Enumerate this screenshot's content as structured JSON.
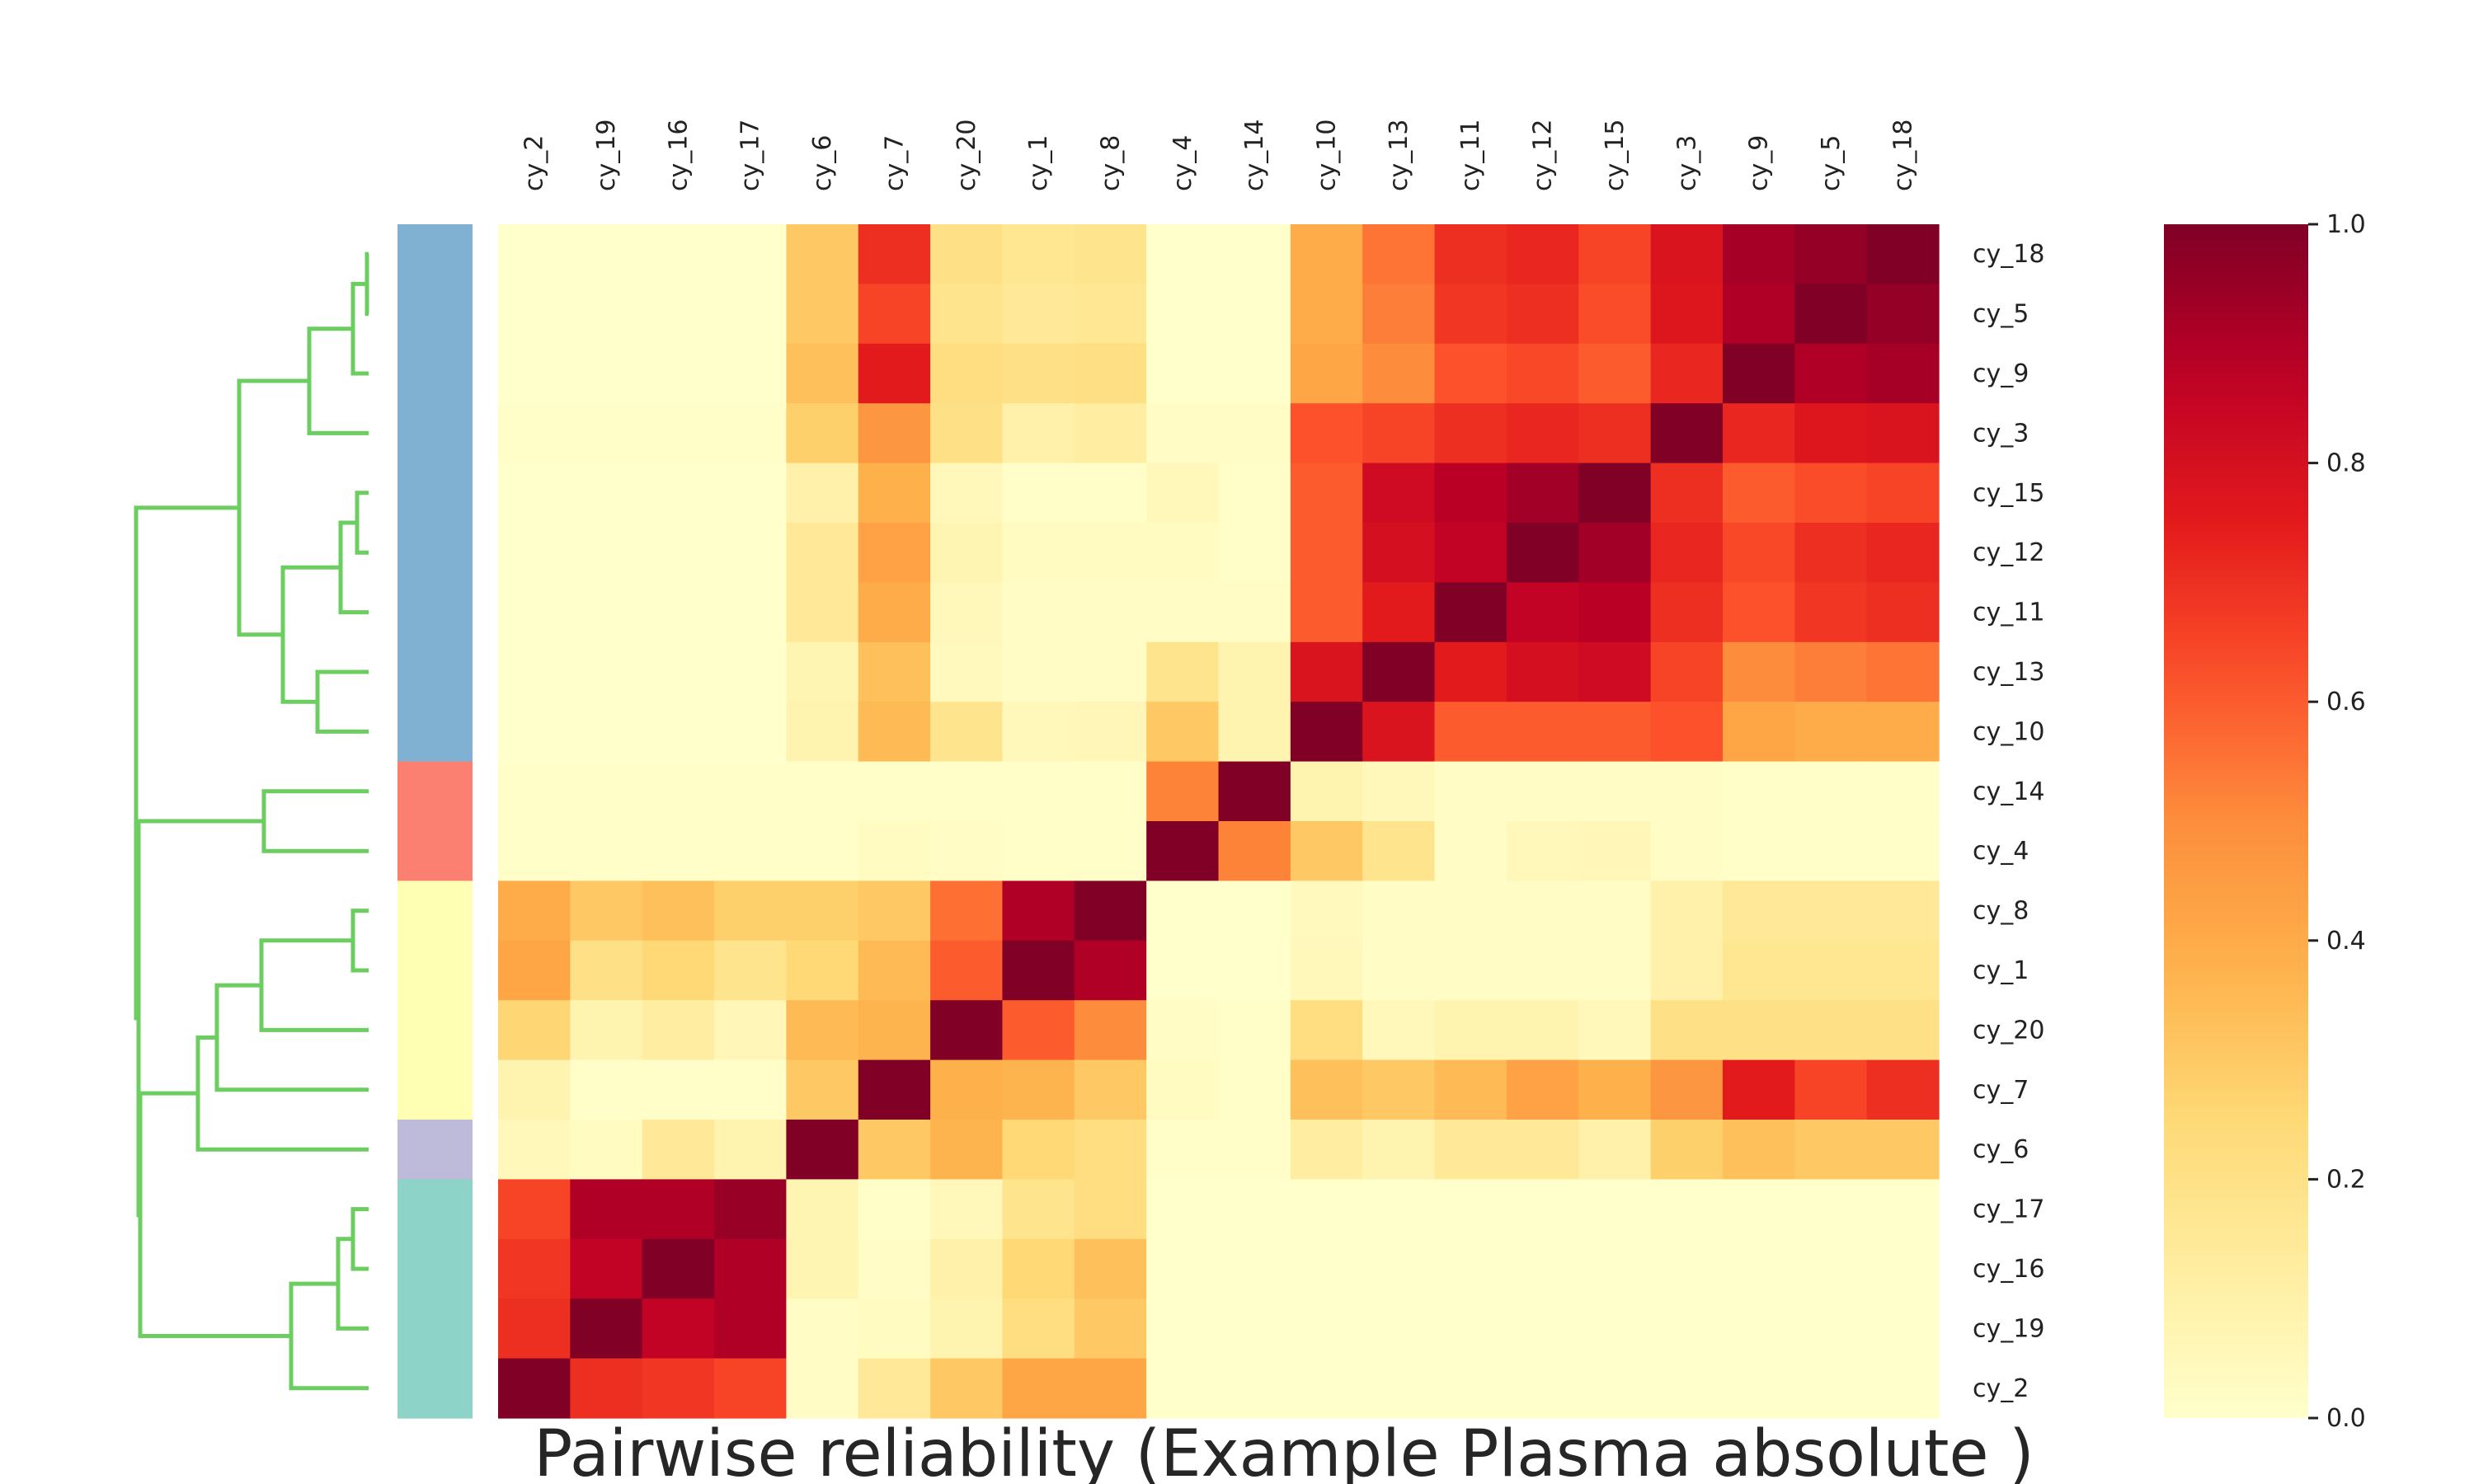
{
  "chart_data": {
    "type": "heatmap",
    "title": "Pairwise reliability (Example Plasma absolute )",
    "column_labels": [
      "cy_2",
      "cy_19",
      "cy_16",
      "cy_17",
      "cy_6",
      "cy_7",
      "cy_20",
      "cy_1",
      "cy_8",
      "cy_4",
      "cy_14",
      "cy_10",
      "cy_13",
      "cy_11",
      "cy_12",
      "cy_15",
      "cy_3",
      "cy_9",
      "cy_5",
      "cy_18"
    ],
    "row_labels": [
      "cy_18",
      "cy_5",
      "cy_9",
      "cy_3",
      "cy_15",
      "cy_12",
      "cy_11",
      "cy_13",
      "cy_10",
      "cy_14",
      "cy_4",
      "cy_8",
      "cy_1",
      "cy_20",
      "cy_7",
      "cy_6",
      "cy_17",
      "cy_16",
      "cy_19",
      "cy_2"
    ],
    "values": [
      [
        0.0,
        0.0,
        0.0,
        0.0,
        0.3,
        0.7,
        0.2,
        0.17,
        0.18,
        0.0,
        0.0,
        0.4,
        0.55,
        0.7,
        0.72,
        0.65,
        0.78,
        0.92,
        0.96,
        1.0
      ],
      [
        0.0,
        0.0,
        0.0,
        0.0,
        0.3,
        0.65,
        0.18,
        0.15,
        0.16,
        0.0,
        0.0,
        0.4,
        0.53,
        0.68,
        0.7,
        0.63,
        0.77,
        0.9,
        1.0,
        0.96
      ],
      [
        0.0,
        0.0,
        0.0,
        0.0,
        0.33,
        0.75,
        0.22,
        0.2,
        0.21,
        0.0,
        0.0,
        0.42,
        0.5,
        0.62,
        0.64,
        0.6,
        0.72,
        1.0,
        0.9,
        0.92
      ],
      [
        0.01,
        0.01,
        0.01,
        0.01,
        0.28,
        0.47,
        0.2,
        0.1,
        0.12,
        0.02,
        0.02,
        0.62,
        0.65,
        0.7,
        0.72,
        0.7,
        1.0,
        0.72,
        0.77,
        0.78
      ],
      [
        0.0,
        0.0,
        0.0,
        0.0,
        0.1,
        0.38,
        0.05,
        0.01,
        0.01,
        0.05,
        0.01,
        0.6,
        0.82,
        0.88,
        0.93,
        1.0,
        0.7,
        0.6,
        0.63,
        0.65
      ],
      [
        0.0,
        0.0,
        0.0,
        0.0,
        0.15,
        0.43,
        0.07,
        0.03,
        0.03,
        0.03,
        0.01,
        0.6,
        0.8,
        0.86,
        1.0,
        0.93,
        0.72,
        0.64,
        0.7,
        0.72
      ],
      [
        0.0,
        0.0,
        0.0,
        0.0,
        0.15,
        0.4,
        0.05,
        0.02,
        0.02,
        0.02,
        0.02,
        0.6,
        0.75,
        1.0,
        0.86,
        0.88,
        0.7,
        0.62,
        0.68,
        0.7
      ],
      [
        0.0,
        0.0,
        0.0,
        0.0,
        0.07,
        0.33,
        0.04,
        0.02,
        0.02,
        0.18,
        0.08,
        0.78,
        1.0,
        0.75,
        0.8,
        0.82,
        0.65,
        0.5,
        0.53,
        0.55
      ],
      [
        0.0,
        0.0,
        0.0,
        0.0,
        0.08,
        0.35,
        0.18,
        0.05,
        0.06,
        0.3,
        0.08,
        1.0,
        0.78,
        0.6,
        0.6,
        0.6,
        0.62,
        0.42,
        0.4,
        0.4
      ],
      [
        0.01,
        0.01,
        0.01,
        0.01,
        0.01,
        0.01,
        0.01,
        0.01,
        0.01,
        0.52,
        1.0,
        0.08,
        0.05,
        0.02,
        0.02,
        0.02,
        0.02,
        0.01,
        0.01,
        0.01
      ],
      [
        0.01,
        0.01,
        0.01,
        0.01,
        0.01,
        0.03,
        0.02,
        0.01,
        0.01,
        1.0,
        0.52,
        0.3,
        0.18,
        0.02,
        0.05,
        0.06,
        0.02,
        0.01,
        0.01,
        0.01
      ],
      [
        0.4,
        0.3,
        0.33,
        0.28,
        0.28,
        0.3,
        0.56,
        0.9,
        1.0,
        0.0,
        0.0,
        0.04,
        0.02,
        0.02,
        0.02,
        0.02,
        0.1,
        0.15,
        0.15,
        0.15
      ],
      [
        0.42,
        0.2,
        0.25,
        0.18,
        0.25,
        0.35,
        0.6,
        1.0,
        0.9,
        0.0,
        0.0,
        0.05,
        0.02,
        0.02,
        0.02,
        0.02,
        0.1,
        0.17,
        0.17,
        0.17
      ],
      [
        0.26,
        0.08,
        0.12,
        0.06,
        0.35,
        0.37,
        1.0,
        0.6,
        0.5,
        0.02,
        0.01,
        0.22,
        0.05,
        0.08,
        0.08,
        0.05,
        0.2,
        0.2,
        0.2,
        0.2
      ],
      [
        0.08,
        0.01,
        0.01,
        0.01,
        0.3,
        1.0,
        0.38,
        0.37,
        0.3,
        0.03,
        0.01,
        0.33,
        0.3,
        0.35,
        0.43,
        0.38,
        0.47,
        0.75,
        0.65,
        0.7
      ],
      [
        0.05,
        0.03,
        0.15,
        0.08,
        1.0,
        0.3,
        0.37,
        0.25,
        0.22,
        0.01,
        0.01,
        0.12,
        0.08,
        0.15,
        0.15,
        0.1,
        0.28,
        0.33,
        0.3,
        0.3
      ],
      [
        0.65,
        0.9,
        0.9,
        0.95,
        0.07,
        0.01,
        0.05,
        0.18,
        0.22,
        0.0,
        0.0,
        0.0,
        0.0,
        0.0,
        0.0,
        0.0,
        0.0,
        0.0,
        0.0,
        0.0
      ],
      [
        0.68,
        0.86,
        1.0,
        0.9,
        0.07,
        0.02,
        0.1,
        0.25,
        0.33,
        0.0,
        0.0,
        0.0,
        0.0,
        0.0,
        0.0,
        0.0,
        0.0,
        0.0,
        0.0,
        0.0
      ],
      [
        0.7,
        1.0,
        0.86,
        0.9,
        0.02,
        0.03,
        0.08,
        0.22,
        0.3,
        0.0,
        0.0,
        0.0,
        0.0,
        0.0,
        0.0,
        0.0,
        0.0,
        0.0,
        0.0,
        0.0
      ],
      [
        1.0,
        0.7,
        0.68,
        0.65,
        0.02,
        0.15,
        0.3,
        0.42,
        0.42,
        0.0,
        0.0,
        0.0,
        0.0,
        0.0,
        0.0,
        0.0,
        0.0,
        0.0,
        0.0,
        0.0
      ]
    ],
    "colorbar": {
      "min": 0.0,
      "max": 1.0,
      "ticks": [
        "0.0",
        "0.2",
        "0.4",
        "0.6",
        "0.8",
        "1.0"
      ],
      "colormap": "YlOrRd"
    },
    "row_cluster_colors": [
      "#80b1d3",
      "#80b1d3",
      "#80b1d3",
      "#80b1d3",
      "#80b1d3",
      "#80b1d3",
      "#80b1d3",
      "#80b1d3",
      "#80b1d3",
      "#fb8072",
      "#fb8072",
      "#ffffb3",
      "#ffffb3",
      "#ffffb3",
      "#ffffb3",
      "#bebada",
      "#8dd3c7",
      "#8dd3c7",
      "#8dd3c7",
      "#8dd3c7"
    ],
    "dendrogram_color": "#6cce61",
    "grid": false
  }
}
